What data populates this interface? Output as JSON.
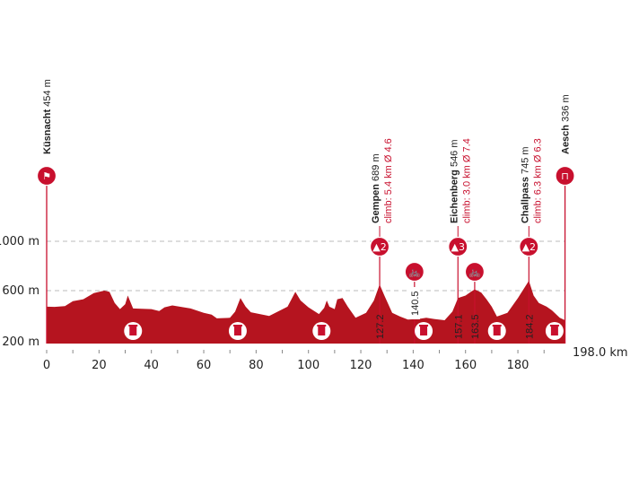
{
  "colors": {
    "profile": "#b5141f",
    "marker": "#c8102e",
    "climb_text": "#c8102e",
    "grid": "#bbbbbb"
  },
  "chart_data": {
    "type": "area",
    "xlabel": "",
    "ylabel": "",
    "xlim": [
      0,
      198
    ],
    "ylim": [
      200,
      1200
    ],
    "x_ticks": [
      0,
      20,
      40,
      60,
      80,
      100,
      120,
      140,
      160,
      180
    ],
    "y_ticks": [
      {
        "value": 200,
        "label": "200 m"
      },
      {
        "value": 600,
        "label": "600 m"
      },
      {
        "value": 1000,
        "label": "1000 m"
      }
    ],
    "grid": "dashed horizontal at 600 m and 1000 m",
    "distance_label": "198.0 km",
    "profile": [
      [
        0,
        470
      ],
      [
        3,
        468
      ],
      [
        7,
        475
      ],
      [
        10,
        515
      ],
      [
        14,
        530
      ],
      [
        18,
        580
      ],
      [
        22,
        600
      ],
      [
        24,
        590
      ],
      [
        26,
        500
      ],
      [
        28,
        450
      ],
      [
        30,
        490
      ],
      [
        31,
        560
      ],
      [
        33,
        455
      ],
      [
        40,
        450
      ],
      [
        43,
        435
      ],
      [
        45,
        465
      ],
      [
        48,
        480
      ],
      [
        55,
        455
      ],
      [
        60,
        420
      ],
      [
        63,
        405
      ],
      [
        65,
        375
      ],
      [
        70,
        380
      ],
      [
        72,
        430
      ],
      [
        74,
        540
      ],
      [
        76,
        470
      ],
      [
        78,
        425
      ],
      [
        85,
        395
      ],
      [
        92,
        470
      ],
      [
        95,
        590
      ],
      [
        97,
        520
      ],
      [
        100,
        465
      ],
      [
        104,
        410
      ],
      [
        106,
        460
      ],
      [
        107,
        520
      ],
      [
        108,
        470
      ],
      [
        110,
        450
      ],
      [
        111,
        530
      ],
      [
        113,
        540
      ],
      [
        115,
        470
      ],
      [
        118,
        380
      ],
      [
        122,
        420
      ],
      [
        125,
        520
      ],
      [
        127.2,
        650
      ],
      [
        129,
        560
      ],
      [
        132,
        420
      ],
      [
        135,
        390
      ],
      [
        138,
        365
      ],
      [
        142,
        370
      ],
      [
        145,
        380
      ],
      [
        148,
        370
      ],
      [
        152,
        360
      ],
      [
        155,
        430
      ],
      [
        157.1,
        540
      ],
      [
        160,
        560
      ],
      [
        162,
        590
      ],
      [
        163.5,
        610
      ],
      [
        166,
        585
      ],
      [
        168,
        530
      ],
      [
        170,
        470
      ],
      [
        172,
        390
      ],
      [
        176,
        420
      ],
      [
        180,
        540
      ],
      [
        184.2,
        680
      ],
      [
        186,
        560
      ],
      [
        188,
        500
      ],
      [
        191,
        470
      ],
      [
        193,
        440
      ],
      [
        196,
        380
      ],
      [
        198,
        360
      ]
    ],
    "start": {
      "km": 0,
      "name": "Küsnacht",
      "elev": "454 m",
      "icon": "checkered-flag-icon"
    },
    "finish": {
      "km": 198,
      "name": "Aesch",
      "elev": "336 m",
      "icon": "finish-arch-icon"
    },
    "climbs": [
      {
        "km": 127.2,
        "km_label": "127.2",
        "name": "Gempen",
        "elev": "689 m",
        "climb": "climb: 5.4 km Ø 4.6",
        "category": "2"
      },
      {
        "km": 157.1,
        "km_label": "157.1",
        "name": "Eichenberg",
        "elev": "546 m",
        "climb": "climb: 3.0 km Ø 7.4",
        "category": "3"
      },
      {
        "km": 184.2,
        "km_label": "184.2",
        "name": "Challpass",
        "elev": "745 m",
        "climb": "climb: 6.3 km Ø 6.3",
        "category": "2"
      }
    ],
    "sprints": [
      {
        "km": 140.5,
        "km_label": "140.5",
        "icon": "bicycle-icon"
      },
      {
        "km": 163.5,
        "km_label": "163.5",
        "icon": "bicycle-icon"
      }
    ],
    "waste_zones": [
      {
        "km": 33
      },
      {
        "km": 73
      },
      {
        "km": 105
      },
      {
        "km": 144
      },
      {
        "km": 172
      },
      {
        "km": 194
      }
    ]
  }
}
